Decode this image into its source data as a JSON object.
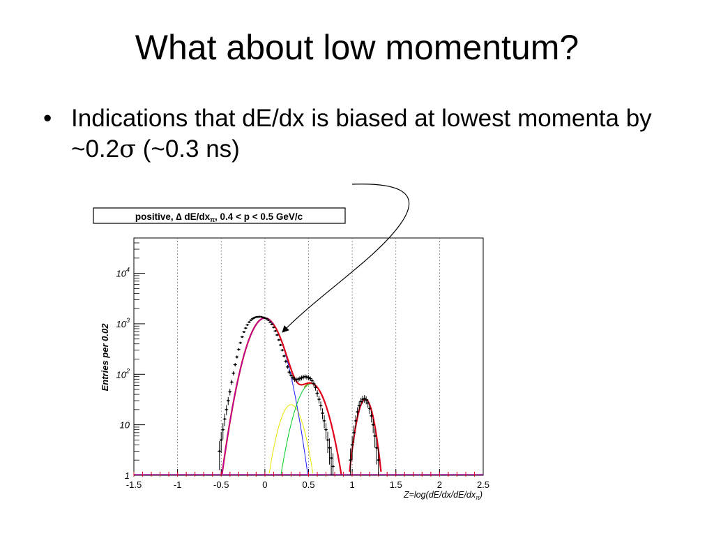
{
  "slide": {
    "title": "What about low momentum?",
    "bullet_marker": "•",
    "bullet_text_a": "Indications that dE/dx is biased at lowest momenta by ~0.2",
    "sigma_symbol": "σ",
    "bullet_text_b": " (~0.3 ns)"
  },
  "chart_data": {
    "type": "line",
    "title": "positive, ∆ dE/dxπ, 0.4 < p < 0.5 GeV/c",
    "title_parts": {
      "a": "positive, ",
      "delta": "∆",
      "b": " dE/dx",
      "sub": "π",
      "c": ", 0.4 < p < 0.5 GeV/c"
    },
    "ylabel": "Entries per 0.02",
    "xlabel_parts": {
      "a": "Z=log(dE/dx/dE/dx",
      "sub": "π",
      "b": ")"
    },
    "xlim": [
      -1.5,
      2.5
    ],
    "ylim": [
      1,
      50000
    ],
    "yscale": "log",
    "x_ticks": [
      "-1.5",
      "-1",
      "-0.5",
      "0",
      "0.5",
      "1",
      "1.5",
      "2",
      "2.5"
    ],
    "x_tick_values": [
      -1.5,
      -1,
      -0.5,
      0,
      0.5,
      1,
      1.5,
      2,
      2.5
    ],
    "y_ticks": [
      {
        "value": 1,
        "base": "1",
        "exp": ""
      },
      {
        "value": 10,
        "base": "10",
        "exp": ""
      },
      {
        "value": 100,
        "base": "10",
        "exp": "2"
      },
      {
        "value": 1000,
        "base": "10",
        "exp": "3"
      },
      {
        "value": 10000,
        "base": "10",
        "exp": "4"
      }
    ],
    "grid": "vertical dotted",
    "colors": {
      "total": "#e0001a",
      "blue": "#1a1aff",
      "yellow": "#e6e600",
      "green": "#00cc22",
      "olive": "#8a7a00",
      "magenta": "#b000b0",
      "points": "#000000"
    },
    "components": [
      {
        "name": "blue",
        "amp": 1300,
        "mu": 0.0,
        "sigma": 0.13
      },
      {
        "name": "yellow",
        "amp": 25,
        "mu": 0.3,
        "sigma": 0.1
      },
      {
        "name": "green",
        "amp": 65,
        "mu": 0.53,
        "sigma": 0.12
      },
      {
        "name": "red",
        "amp": 32,
        "mu": 1.15,
        "sigma": 0.07
      }
    ],
    "points": [
      [
        -0.52,
        3
      ],
      [
        -0.5,
        5
      ],
      [
        -0.48,
        8
      ],
      [
        -0.46,
        13
      ],
      [
        -0.44,
        20
      ],
      [
        -0.42,
        30
      ],
      [
        -0.4,
        45
      ],
      [
        -0.38,
        70
      ],
      [
        -0.36,
        105
      ],
      [
        -0.34,
        155
      ],
      [
        -0.32,
        220
      ],
      [
        -0.3,
        310
      ],
      [
        -0.28,
        420
      ],
      [
        -0.26,
        550
      ],
      [
        -0.24,
        690
      ],
      [
        -0.22,
        820
      ],
      [
        -0.2,
        950
      ],
      [
        -0.18,
        1080
      ],
      [
        -0.16,
        1180
      ],
      [
        -0.14,
        1260
      ],
      [
        -0.12,
        1320
      ],
      [
        -0.1,
        1360
      ],
      [
        -0.08,
        1370
      ],
      [
        -0.06,
        1380
      ],
      [
        -0.04,
        1370
      ],
      [
        -0.02,
        1340
      ],
      [
        0.0,
        1300
      ],
      [
        0.02,
        1260
      ],
      [
        0.04,
        1180
      ],
      [
        0.06,
        1080
      ],
      [
        0.08,
        980
      ],
      [
        0.1,
        850
      ],
      [
        0.12,
        720
      ],
      [
        0.14,
        600
      ],
      [
        0.16,
        480
      ],
      [
        0.18,
        380
      ],
      [
        0.2,
        300
      ],
      [
        0.22,
        230
      ],
      [
        0.24,
        180
      ],
      [
        0.26,
        140
      ],
      [
        0.28,
        110
      ],
      [
        0.3,
        95
      ],
      [
        0.32,
        85
      ],
      [
        0.34,
        80
      ],
      [
        0.36,
        78
      ],
      [
        0.38,
        80
      ],
      [
        0.4,
        82
      ],
      [
        0.42,
        85
      ],
      [
        0.44,
        88
      ],
      [
        0.46,
        90
      ],
      [
        0.48,
        88
      ],
      [
        0.5,
        86
      ],
      [
        0.52,
        82
      ],
      [
        0.54,
        75
      ],
      [
        0.56,
        65
      ],
      [
        0.58,
        55
      ],
      [
        0.6,
        42
      ],
      [
        0.62,
        32
      ],
      [
        0.64,
        24
      ],
      [
        0.66,
        17
      ],
      [
        0.68,
        12
      ],
      [
        0.7,
        8
      ],
      [
        0.72,
        5
      ],
      [
        0.74,
        3.5
      ],
      [
        0.76,
        2.2
      ],
      [
        0.78,
        1.5
      ],
      [
        0.98,
        2
      ],
      [
        1.0,
        4
      ],
      [
        1.02,
        7
      ],
      [
        1.04,
        12
      ],
      [
        1.06,
        18
      ],
      [
        1.08,
        24
      ],
      [
        1.1,
        29
      ],
      [
        1.12,
        32
      ],
      [
        1.14,
        33
      ],
      [
        1.16,
        31
      ],
      [
        1.18,
        27
      ],
      [
        1.2,
        21
      ],
      [
        1.22,
        15
      ],
      [
        1.24,
        10
      ],
      [
        1.26,
        6
      ],
      [
        1.28,
        3.5
      ],
      [
        1.3,
        2
      ]
    ]
  }
}
